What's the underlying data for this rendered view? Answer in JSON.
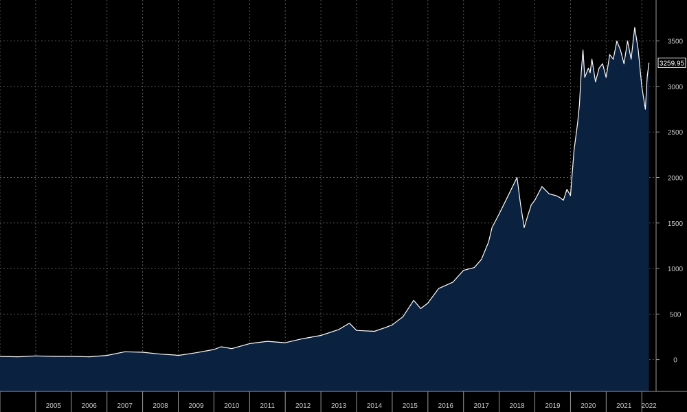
{
  "chart_data": {
    "type": "area",
    "title": "",
    "xlabel": "",
    "ylabel": "",
    "x_range": [
      2004.0,
      2022.4
    ],
    "ylim": [
      -350,
      3950
    ],
    "y_ticks": [
      0,
      500,
      1000,
      1500,
      2000,
      2500,
      3000,
      3500
    ],
    "x_tick_labels": [
      "2005",
      "2006",
      "2007",
      "2008",
      "2009",
      "2010",
      "2011",
      "2012",
      "2013",
      "2014",
      "2015",
      "2016",
      "2017",
      "2018",
      "2019",
      "2020",
      "2021",
      "2022"
    ],
    "grid": true,
    "last_value_label": "3259.95",
    "colors": {
      "background": "#000000",
      "area_fill": "#0b2140",
      "line": "#ffffff",
      "grid": "#5a5a5a"
    },
    "series": [
      {
        "x": [
          2004.0,
          2004.5,
          2005.0,
          2005.5,
          2006.0,
          2006.5,
          2007.0,
          2007.5,
          2008.0,
          2008.5,
          2008.9,
          2009.0,
          2009.5,
          2010.0,
          2010.2,
          2010.5,
          2011.0,
          2011.5,
          2012.0,
          2012.5,
          2013.0,
          2013.5,
          2013.8,
          2014.0,
          2014.5,
          2014.8,
          2015.0,
          2015.3,
          2015.6,
          2015.8,
          2016.0,
          2016.3,
          2016.7,
          2017.0,
          2017.3,
          2017.5,
          2017.7,
          2017.8,
          2018.0,
          2018.2,
          2018.4,
          2018.5,
          2018.6,
          2018.7,
          2018.8,
          2018.9,
          2019.0,
          2019.2,
          2019.4,
          2019.6,
          2019.7,
          2019.8,
          2019.9,
          2020.0,
          2020.1,
          2020.2,
          2020.25,
          2020.3,
          2020.35,
          2020.4,
          2020.5,
          2020.55,
          2020.6,
          2020.7,
          2020.8,
          2020.9,
          2021.0,
          2021.1,
          2021.2,
          2021.3,
          2021.4,
          2021.5,
          2021.6,
          2021.7,
          2021.8,
          2021.9,
          2022.0,
          2022.1,
          2022.15,
          2022.2
        ],
        "y": [
          35,
          30,
          40,
          35,
          35,
          30,
          45,
          85,
          80,
          60,
          50,
          45,
          75,
          110,
          140,
          120,
          175,
          200,
          185,
          230,
          265,
          330,
          400,
          320,
          310,
          350,
          380,
          470,
          650,
          560,
          620,
          780,
          850,
          980,
          1010,
          1100,
          1290,
          1450,
          1600,
          1760,
          1920,
          2000,
          1700,
          1450,
          1580,
          1700,
          1750,
          1900,
          1820,
          1800,
          1780,
          1750,
          1870,
          1800,
          2300,
          2600,
          2800,
          3150,
          3400,
          3100,
          3200,
          3150,
          3300,
          3050,
          3200,
          3250,
          3100,
          3350,
          3300,
          3500,
          3400,
          3250,
          3500,
          3300,
          3650,
          3400,
          3000,
          2750,
          3100,
          3260
        ]
      }
    ]
  }
}
